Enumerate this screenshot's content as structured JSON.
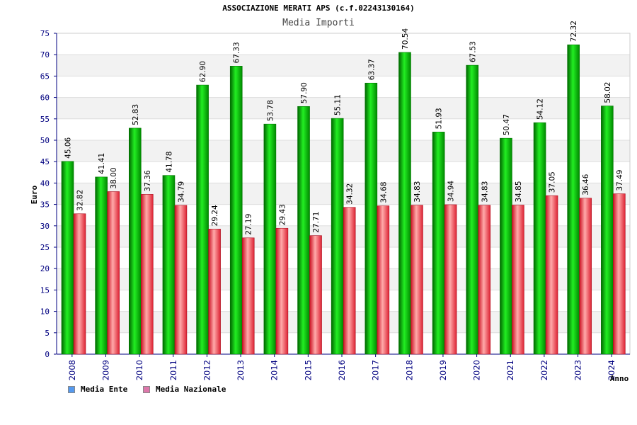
{
  "chart_data": {
    "type": "bar",
    "title": "ASSOCIAZIONE MERATI APS (c.f.02243130164)",
    "subtitle": "Media Importi",
    "xlabel": "Anno",
    "ylabel": "Euro",
    "ylim": [
      0,
      75
    ],
    "yticks": [
      0,
      5,
      10,
      15,
      20,
      25,
      30,
      35,
      40,
      45,
      50,
      55,
      60,
      65,
      70,
      75
    ],
    "categories": [
      "2008",
      "2009",
      "2010",
      "2011",
      "2012",
      "2013",
      "2014",
      "2015",
      "2016",
      "2017",
      "2018",
      "2019",
      "2020",
      "2021",
      "2022",
      "2023",
      "2024"
    ],
    "series": [
      {
        "name": "Media Ente",
        "color": "#00aa00",
        "legend_color": "#5599ee",
        "values": [
          45.06,
          41.41,
          52.83,
          41.78,
          62.9,
          67.33,
          53.78,
          57.9,
          55.11,
          63.37,
          70.54,
          51.93,
          67.53,
          50.47,
          54.12,
          72.32,
          58.02
        ],
        "labels": [
          "45.06",
          "41.41",
          "52.83",
          "41.78",
          "62.90",
          "67.33",
          "53.78",
          "57.90",
          "55.11",
          "63.37",
          "70.54",
          "51.93",
          "67.53",
          "50.47",
          "54.12",
          "72.32",
          "58.02"
        ]
      },
      {
        "name": "Media Nazionale",
        "color": "#dd2233",
        "legend_color": "#dd77aa",
        "values": [
          32.82,
          38.0,
          37.36,
          34.79,
          29.24,
          27.19,
          29.43,
          27.71,
          34.32,
          34.68,
          34.83,
          34.94,
          34.83,
          34.85,
          37.05,
          36.46,
          37.49
        ],
        "labels": [
          "32.82",
          "38.00",
          "37.36",
          "34.79",
          "29.24",
          "27.19",
          "29.43",
          "27.71",
          "34.32",
          "34.68",
          "34.83",
          "34.94",
          "34.83",
          "34.85",
          "37.05",
          "36.46",
          "37.49"
        ]
      }
    ],
    "grid": true,
    "legend_position": "bottom-left"
  }
}
